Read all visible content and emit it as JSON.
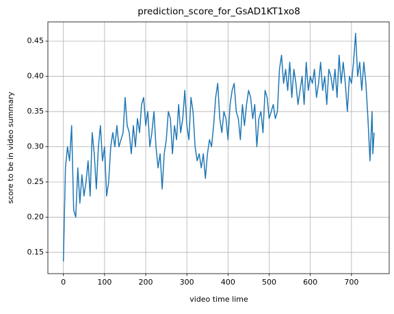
{
  "chart_data": {
    "type": "line",
    "title": "prediction_score_for_GsAD1KT1xo8",
    "xlabel": "video time lime",
    "ylabel": "score to be in video summary",
    "color": "#1f77b4",
    "grid": true,
    "xlim": [
      -37.7,
      791.7
    ],
    "ylim": [
      0.1198,
      0.4773
    ],
    "xticks": [
      0,
      100,
      200,
      300,
      400,
      500,
      600,
      700
    ],
    "yticks": [
      0.15,
      {
        "value": 0.2,
        "label": "0.20"
      },
      0.25,
      {
        "value": 0.3,
        "label": "0.30"
      },
      0.35,
      {
        "value": 0.4,
        "label": "0.40"
      },
      0.45
    ],
    "x": [
      0,
      5,
      10,
      15,
      20,
      25,
      30,
      35,
      40,
      45,
      50,
      55,
      60,
      65,
      70,
      75,
      80,
      85,
      90,
      95,
      100,
      105,
      110,
      115,
      120,
      125,
      130,
      135,
      140,
      145,
      150,
      155,
      160,
      165,
      170,
      175,
      180,
      185,
      190,
      195,
      200,
      205,
      210,
      215,
      220,
      225,
      230,
      235,
      240,
      245,
      250,
      255,
      260,
      265,
      270,
      275,
      280,
      285,
      290,
      295,
      300,
      305,
      310,
      315,
      320,
      325,
      330,
      335,
      340,
      345,
      350,
      355,
      360,
      365,
      370,
      375,
      380,
      385,
      390,
      395,
      400,
      405,
      410,
      415,
      420,
      425,
      430,
      435,
      440,
      445,
      450,
      455,
      460,
      465,
      470,
      475,
      480,
      485,
      490,
      495,
      500,
      505,
      510,
      515,
      520,
      525,
      530,
      535,
      540,
      545,
      550,
      555,
      560,
      565,
      570,
      575,
      580,
      585,
      590,
      595,
      600,
      605,
      610,
      615,
      620,
      625,
      630,
      635,
      640,
      645,
      650,
      655,
      660,
      665,
      670,
      675,
      680,
      685,
      690,
      695,
      700,
      705,
      710,
      715,
      720,
      725,
      730,
      735,
      740,
      745,
      750,
      752,
      755
    ],
    "values": [
      0.137,
      0.27,
      0.3,
      0.28,
      0.33,
      0.21,
      0.2,
      0.27,
      0.22,
      0.26,
      0.23,
      0.25,
      0.28,
      0.23,
      0.32,
      0.29,
      0.24,
      0.3,
      0.33,
      0.28,
      0.3,
      0.23,
      0.25,
      0.3,
      0.32,
      0.3,
      0.33,
      0.3,
      0.31,
      0.32,
      0.37,
      0.33,
      0.32,
      0.29,
      0.33,
      0.3,
      0.34,
      0.32,
      0.36,
      0.37,
      0.33,
      0.35,
      0.3,
      0.32,
      0.35,
      0.3,
      0.27,
      0.29,
      0.24,
      0.29,
      0.31,
      0.35,
      0.34,
      0.29,
      0.33,
      0.31,
      0.36,
      0.32,
      0.34,
      0.38,
      0.33,
      0.31,
      0.37,
      0.35,
      0.3,
      0.28,
      0.29,
      0.27,
      0.29,
      0.255,
      0.29,
      0.31,
      0.3,
      0.33,
      0.37,
      0.39,
      0.34,
      0.32,
      0.35,
      0.34,
      0.31,
      0.36,
      0.38,
      0.39,
      0.35,
      0.34,
      0.31,
      0.36,
      0.33,
      0.36,
      0.38,
      0.37,
      0.34,
      0.36,
      0.3,
      0.34,
      0.35,
      0.32,
      0.38,
      0.37,
      0.34,
      0.35,
      0.36,
      0.34,
      0.35,
      0.41,
      0.43,
      0.39,
      0.41,
      0.38,
      0.42,
      0.37,
      0.41,
      0.39,
      0.36,
      0.38,
      0.4,
      0.36,
      0.42,
      0.38,
      0.4,
      0.39,
      0.41,
      0.37,
      0.39,
      0.42,
      0.38,
      0.4,
      0.36,
      0.41,
      0.4,
      0.38,
      0.41,
      0.37,
      0.43,
      0.39,
      0.42,
      0.39,
      0.35,
      0.4,
      0.39,
      0.42,
      0.461,
      0.4,
      0.42,
      0.38,
      0.42,
      0.39,
      0.34,
      0.28,
      0.35,
      0.29,
      0.32
    ]
  }
}
